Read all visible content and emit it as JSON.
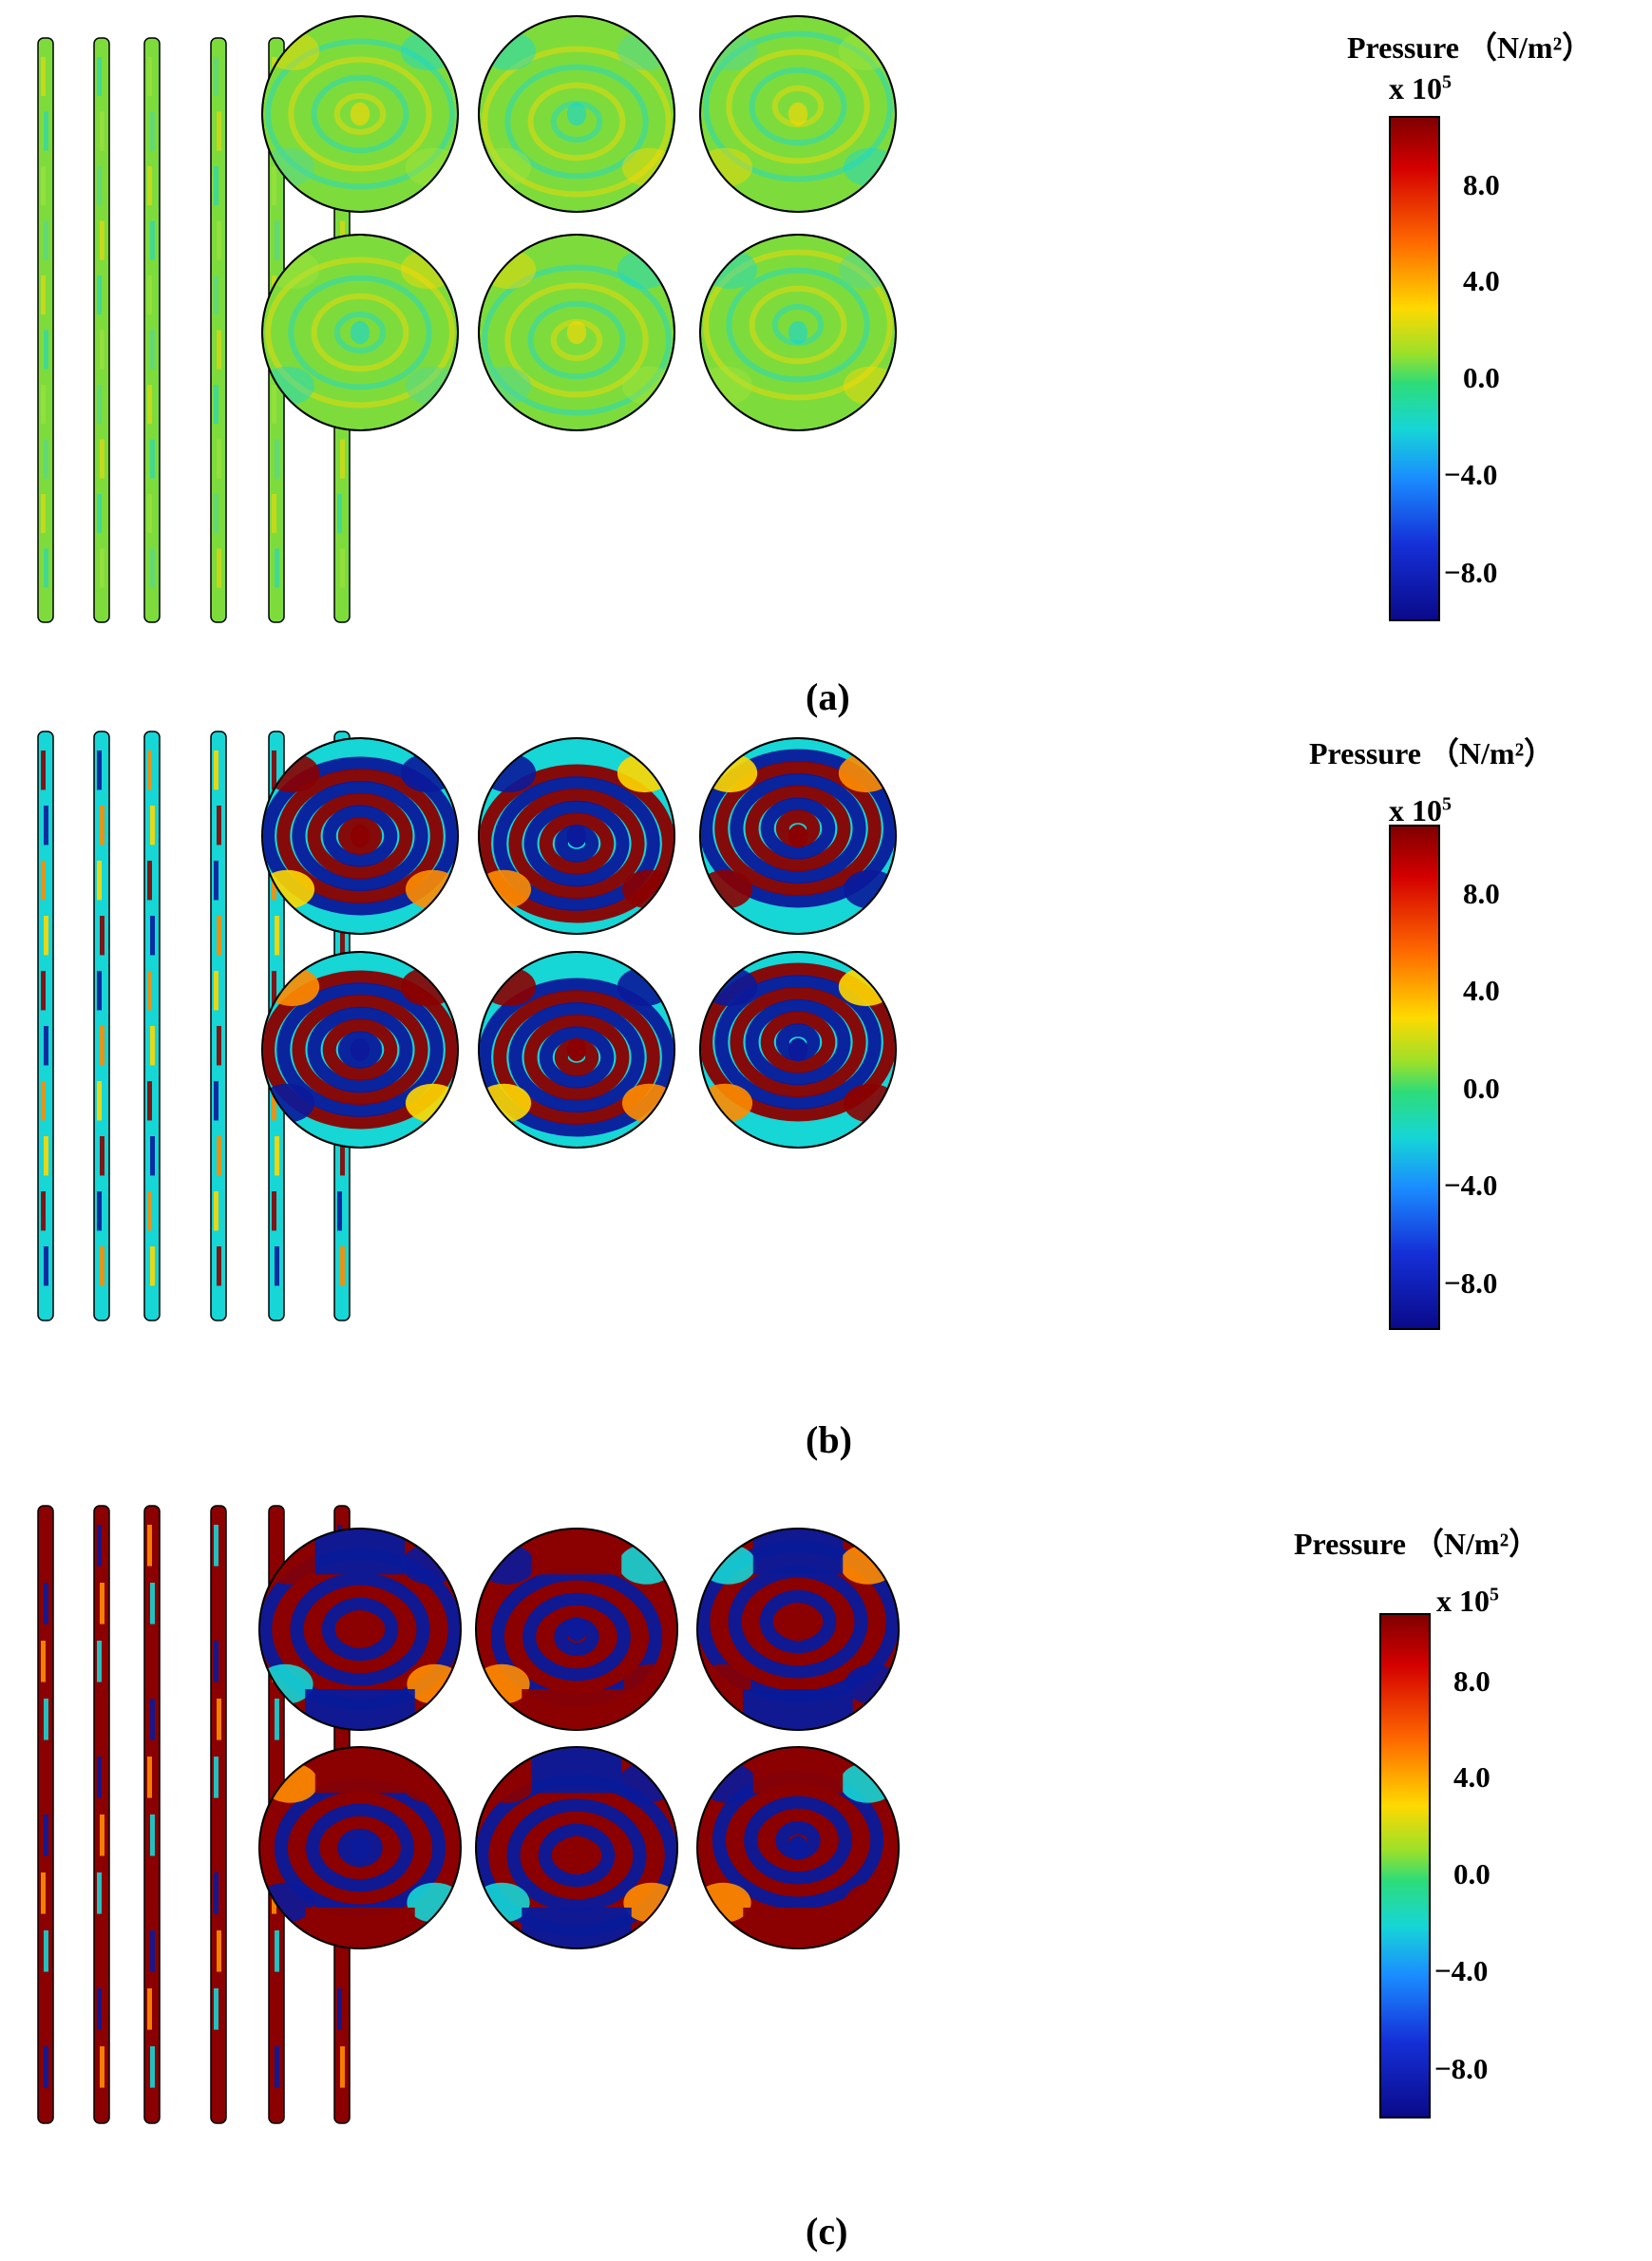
{
  "colorbar": {
    "title": "Pressure （N/m²）",
    "exponent_prefix": "x 10",
    "exponent_power": "5",
    "ticks": [
      "8.0",
      "4.0",
      "0.0",
      "−4.0",
      "−8.0"
    ]
  },
  "panels": [
    {
      "caption": "(a)",
      "style": "weak"
    },
    {
      "caption": "(b)",
      "style": "moderate"
    },
    {
      "caption": "(c)",
      "style": "saturated"
    }
  ],
  "colors": {
    "dark_red": "#8b0000",
    "red": "#e31a1c",
    "orange": "#ff8c00",
    "yellow": "#ffd700",
    "green": "#7ddc3c",
    "cyan": "#16d6d6",
    "blue": "#1a6cff",
    "dark_blue": "#0a1a9a"
  }
}
